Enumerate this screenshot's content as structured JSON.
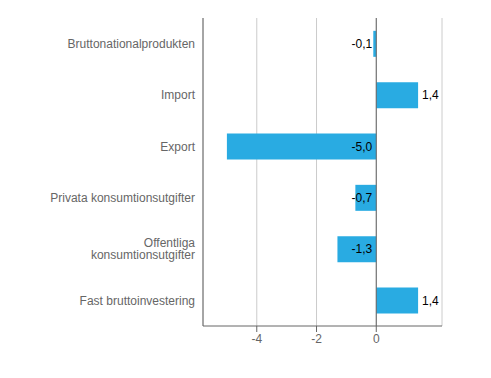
{
  "chart_data": {
    "type": "bar",
    "orientation": "horizontal",
    "categories": [
      "Fast bruttoinvestering",
      "Offentliga konsumtionsutgifter",
      "Privata konsumtionsutgifter",
      "Export",
      "Import",
      "Bruttonationalprodukten"
    ],
    "values": [
      1.4,
      -1.3,
      -0.7,
      -5.0,
      1.4,
      -0.1
    ],
    "value_labels": [
      "1,4",
      "-1,3",
      "-0,7",
      "-5,0",
      "1,4",
      "-0,1"
    ],
    "data_labels": true,
    "color": "#29abe2",
    "xlim": [
      -5.8,
      2.2
    ],
    "xticks": [
      -4,
      -2,
      0
    ],
    "grid": true
  }
}
